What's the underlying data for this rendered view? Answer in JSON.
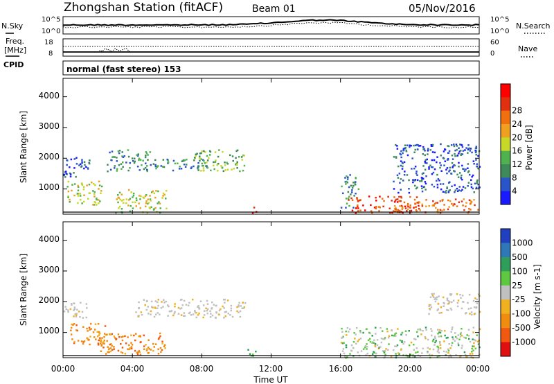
{
  "header": {
    "station": "Zhongshan Station (fitACF)",
    "beam": "Beam 01",
    "date": "05/Nov/2016"
  },
  "noise_panel": {
    "left_label": "N.Sky",
    "right_label": "N.Search",
    "left_ticks": [
      "10^5",
      "10^0"
    ],
    "right_ticks": [
      "10^5",
      "10^0"
    ]
  },
  "freq_panel": {
    "left_label_1": "Freq.",
    "left_label_2": "[MHz]",
    "right_label": "Nave",
    "left_ticks": [
      "18",
      "8"
    ],
    "right_ticks": [
      "60",
      "0"
    ]
  },
  "cpid": {
    "label": "CPID",
    "text": "normal (fast stereo) 153"
  },
  "chart_data": [
    {
      "type": "heatmap",
      "name": "power",
      "ylabel": "Slant Range [km]",
      "ylim": [
        180,
        4600
      ],
      "yticks": [
        "1000",
        "2000",
        "3000",
        "4000"
      ],
      "xlim_hours": [
        0,
        24
      ],
      "colorbar": {
        "label": "Power [dB]",
        "ticks": [
          "4",
          "8",
          "12",
          "16",
          "20",
          "24",
          "28"
        ],
        "colors": [
          "#1a1aff",
          "#2a55c8",
          "#3f8a5a",
          "#4fb24f",
          "#c8d828",
          "#f0a020",
          "#f07010",
          "#e03010",
          "#ff0000"
        ]
      },
      "echo_regions": [
        {
          "t": [
            0.0,
            1.5
          ],
          "r": [
            1400,
            2100
          ],
          "level": 1
        },
        {
          "t": [
            0.2,
            2.2
          ],
          "r": [
            500,
            1300
          ],
          "level": 4
        },
        {
          "t": [
            2.5,
            5.0
          ],
          "r": [
            1600,
            2300
          ],
          "level": 2
        },
        {
          "t": [
            3.0,
            6.0
          ],
          "r": [
            250,
            1000
          ],
          "level": 4
        },
        {
          "t": [
            5.0,
            8.5
          ],
          "r": [
            1600,
            2000
          ],
          "level": 2
        },
        {
          "t": [
            7.5,
            10.5
          ],
          "r": [
            1600,
            2300
          ],
          "level": 3
        },
        {
          "t": [
            10.7,
            11.1
          ],
          "r": [
            250,
            450
          ],
          "level": 7
        },
        {
          "t": [
            16.0,
            17.0
          ],
          "r": [
            400,
            1500
          ],
          "level": 2
        },
        {
          "t": [
            16.4,
            20.5
          ],
          "r": [
            250,
            800
          ],
          "level": 7
        },
        {
          "t": [
            19.0,
            24.0
          ],
          "r": [
            250,
            700
          ],
          "level": 6
        },
        {
          "t": [
            19.0,
            24.0
          ],
          "r": [
            900,
            2500
          ],
          "level": 1
        }
      ]
    },
    {
      "type": "heatmap",
      "name": "velocity",
      "xlabel": "Time UT",
      "ylabel": "Slant Range [km]",
      "ylim": [
        180,
        4600
      ],
      "yticks": [
        "1000",
        "2000",
        "3000",
        "4000"
      ],
      "xticks": [
        "00:00",
        "04:00",
        "08:00",
        "12:00",
        "16:00",
        "20:00",
        "00:00"
      ],
      "xlim_hours": [
        0,
        24
      ],
      "colorbar": {
        "label": "Velocity [m s-1]",
        "ticks": [
          "1000",
          "500",
          "100",
          "25",
          "-25",
          "-100",
          "-500",
          "-1000"
        ],
        "colors": [
          "#2040c0",
          "#2e78b8",
          "#2f9e5a",
          "#5ec940",
          "#c0c0c0",
          "#f0b020",
          "#f08c10",
          "#f05a10",
          "#e01010"
        ]
      },
      "echo_regions": [
        {
          "t": [
            0.0,
            1.5
          ],
          "r": [
            1500,
            2000
          ],
          "class": "ground"
        },
        {
          "t": [
            0.4,
            2.5
          ],
          "r": [
            600,
            1350
          ],
          "class": "away"
        },
        {
          "t": [
            2.0,
            6.0
          ],
          "r": [
            300,
            1000
          ],
          "class": "away"
        },
        {
          "t": [
            4.0,
            10.5
          ],
          "r": [
            1500,
            2100
          ],
          "class": "ground"
        },
        {
          "t": [
            10.6,
            11.2
          ],
          "r": [
            200,
            500
          ],
          "class": "toward"
        },
        {
          "t": [
            16.0,
            24.0
          ],
          "r": [
            200,
            1200
          ],
          "class": "mixed"
        },
        {
          "t": [
            21.0,
            24.0
          ],
          "r": [
            1600,
            2300
          ],
          "class": "ground"
        }
      ]
    }
  ]
}
